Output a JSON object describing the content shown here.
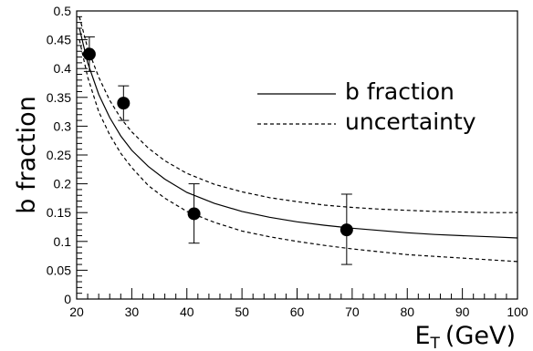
{
  "chart_data": {
    "type": "line",
    "title": "",
    "xlabel": {
      "main": "E",
      "sub": "T",
      "rest": "(GeV)"
    },
    "ylabel": "b fraction",
    "xlim": [
      20,
      100
    ],
    "ylim": [
      0,
      0.5
    ],
    "x_ticks": [
      "20",
      "30",
      "40",
      "50",
      "60",
      "70",
      "80",
      "90",
      "100"
    ],
    "y_ticks": [
      "0",
      "0.05",
      "0.1",
      "0.15",
      "0.2",
      "0.25",
      "0.3",
      "0.35",
      "0.4",
      "0.45",
      "0.5"
    ],
    "legend_position": "right",
    "grid": false,
    "series": [
      {
        "name": "b fraction",
        "style": "solid",
        "x": [
          20.5,
          22,
          24,
          26,
          28,
          30,
          33,
          36,
          40,
          45,
          50,
          55,
          60,
          65,
          70,
          75,
          80,
          85,
          90,
          95,
          100
        ],
        "y": [
          0.47,
          0.41,
          0.355,
          0.315,
          0.283,
          0.258,
          0.23,
          0.208,
          0.185,
          0.166,
          0.152,
          0.142,
          0.134,
          0.128,
          0.123,
          0.119,
          0.115,
          0.112,
          0.11,
          0.108,
          0.106
        ]
      },
      {
        "name": "uncertainty",
        "style": "dashed",
        "x": [
          20.5,
          22,
          24,
          26,
          28,
          30,
          33,
          36,
          40,
          45,
          50,
          55,
          60,
          65,
          70,
          75,
          80,
          85,
          90,
          95,
          100
        ],
        "y": [
          0.49,
          0.435,
          0.385,
          0.345,
          0.314,
          0.29,
          0.262,
          0.24,
          0.218,
          0.199,
          0.186,
          0.176,
          0.169,
          0.163,
          0.159,
          0.156,
          0.154,
          0.152,
          0.151,
          0.15,
          0.15
        ]
      },
      {
        "name": "",
        "style": "dashed",
        "x": [
          20.5,
          22,
          24,
          26,
          28,
          30,
          33,
          36,
          40,
          45,
          50,
          55,
          60,
          65,
          70,
          75,
          80,
          85,
          90,
          95,
          100
        ],
        "y": [
          0.45,
          0.385,
          0.325,
          0.285,
          0.253,
          0.228,
          0.197,
          0.175,
          0.152,
          0.133,
          0.118,
          0.108,
          0.1,
          0.093,
          0.087,
          0.082,
          0.077,
          0.074,
          0.071,
          0.068,
          0.065
        ]
      }
    ],
    "points": [
      {
        "x": 22.3,
        "y": 0.425,
        "yerr_low": 0.395,
        "yerr_high": 0.455
      },
      {
        "x": 28.5,
        "y": 0.34,
        "yerr_low": 0.31,
        "yerr_high": 0.37
      },
      {
        "x": 41.3,
        "y": 0.148,
        "yerr_low": 0.097,
        "yerr_high": 0.2
      },
      {
        "x": 69.0,
        "y": 0.12,
        "yerr_low": 0.06,
        "yerr_high": 0.182
      }
    ]
  }
}
